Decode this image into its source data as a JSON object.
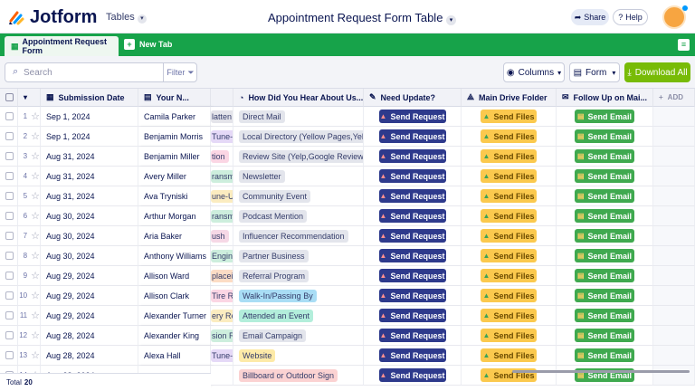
{
  "header": {
    "brand": "Jotform",
    "section": "Tables",
    "title": "Appointment Request Form Table",
    "share": "Share",
    "help": "Help"
  },
  "tabs": {
    "active": "Appointment Request Form",
    "new_tab": "New Tab"
  },
  "toolbar": {
    "search_placeholder": "Search",
    "filter": "Filter",
    "columns": "Columns",
    "form": "Form",
    "download": "Download All"
  },
  "table": {
    "columns": [
      "Submission Date",
      "Your N...",
      "How Did You Hear About Us...",
      "Need Update?",
      "Main Drive Folder",
      "Follow Up on Mai...",
      "ADD"
    ],
    "rows": [
      {
        "number": 1,
        "date": "Sep 1, 2024",
        "name": "Camila Parker",
        "partial": "latten",
        "partial_color": "#e4e4ea",
        "source": "Direct Mail",
        "source_color": "#e3e5ec",
        "update": "Send Request",
        "files": "Send Files",
        "email": "Send Email"
      },
      {
        "number": 2,
        "date": "Sep 1, 2024",
        "name": "Benjamin Morris",
        "partial": "Tune-",
        "partial_color": "#e5d9f7",
        "source": "Local Directory (Yellow Pages,Yelp)",
        "source_color": "#e3e5ec",
        "update": "Send Request",
        "files": "Send Files",
        "email": "Send Email"
      },
      {
        "number": 3,
        "date": "Aug 31, 2024",
        "name": "Benjamin Miller",
        "partial": "tion",
        "partial_color": "#fbd6e4",
        "source": "Review Site (Yelp,Google Reviews)",
        "source_color": "#e3e5ec",
        "update": "Send Request",
        "files": "Send Files",
        "email": "Send Email"
      },
      {
        "number": 4,
        "date": "Aug 31, 2024",
        "name": "Avery Miller",
        "partial": "ransm",
        "partial_color": "#cdeedd",
        "source": "Newsletter",
        "source_color": "#e3e5ec",
        "update": "Send Request",
        "files": "Send Files",
        "email": "Send Email"
      },
      {
        "number": 5,
        "date": "Aug 31, 2024",
        "name": "Ava Tryniski",
        "partial": "une-U",
        "partial_color": "#fbecc0",
        "source": "Community Event",
        "source_color": "#e3e5ec",
        "update": "Send Request",
        "files": "Send Files",
        "email": "Send Email"
      },
      {
        "number": 6,
        "date": "Aug 30, 2024",
        "name": "Arthur Morgan",
        "partial": "ransm",
        "partial_color": "#cdeedd",
        "source": "Podcast Mention",
        "source_color": "#e3e5ec",
        "update": "Send Request",
        "files": "Send Files",
        "email": "Send Email"
      },
      {
        "number": 7,
        "date": "Aug 30, 2024",
        "name": "Aria Baker",
        "partial": "ush",
        "partial_color": "#f6d8e6",
        "source": "Influencer Recommendation",
        "source_color": "#e3e5ec",
        "update": "Send Request",
        "files": "Send Files",
        "email": "Send Email"
      },
      {
        "number": 8,
        "date": "Aug 30, 2024",
        "name": "Anthony Williams",
        "partial": "Engine",
        "partial_color": "#cdeedd",
        "source": "Partner Business",
        "source_color": "#e3e5ec",
        "update": "Send Request",
        "files": "Send Files",
        "email": "Send Email"
      },
      {
        "number": 9,
        "date": "Aug 29, 2024",
        "name": "Allison Ward",
        "partial": "placei",
        "partial_color": "#fcdcc5",
        "source": "Referral Program",
        "source_color": "#e3e5ec",
        "update": "Send Request",
        "files": "Send Files",
        "email": "Send Email"
      },
      {
        "number": 10,
        "date": "Aug 29, 2024",
        "name": "Allison Clark",
        "partial": "Tire Ro",
        "partial_color": "#fbd6e4",
        "source": "Walk-In/Passing By",
        "source_color": "#a9ddf5",
        "update": "Send Request",
        "files": "Send Files",
        "email": "Send Email"
      },
      {
        "number": 11,
        "date": "Aug 29, 2024",
        "name": "Alexander Turner",
        "partial": "ery Re",
        "partial_color": "#fbecc0",
        "source": "Attended an Event",
        "source_color": "#b3eedb",
        "update": "Send Request",
        "files": "Send Files",
        "email": "Send Email"
      },
      {
        "number": 12,
        "date": "Aug 28, 2024",
        "name": "Alexander King",
        "partial": "sion R",
        "partial_color": "#cdeedd",
        "source": "Email Campaign",
        "source_color": "#e3e5ec",
        "update": "Send Request",
        "files": "Send Files",
        "email": "Send Email"
      },
      {
        "number": 13,
        "date": "Aug 28, 2024",
        "name": "Alexa Hall",
        "partial": "Tune-",
        "partial_color": "#e5d9f7",
        "source": "Website",
        "source_color": "#fdeaa8",
        "update": "Send Request",
        "files": "Send Files",
        "email": "Send Email"
      },
      {
        "number": 14,
        "date": "Aug 28, 2024",
        "source": "Billboard or Outdoor Sign",
        "source_color": "#fbd2d2",
        "update": "Send Request",
        "files": "Send Files",
        "email": "Send Email"
      }
    ]
  },
  "footer": {
    "label": "Total",
    "count": 20
  }
}
